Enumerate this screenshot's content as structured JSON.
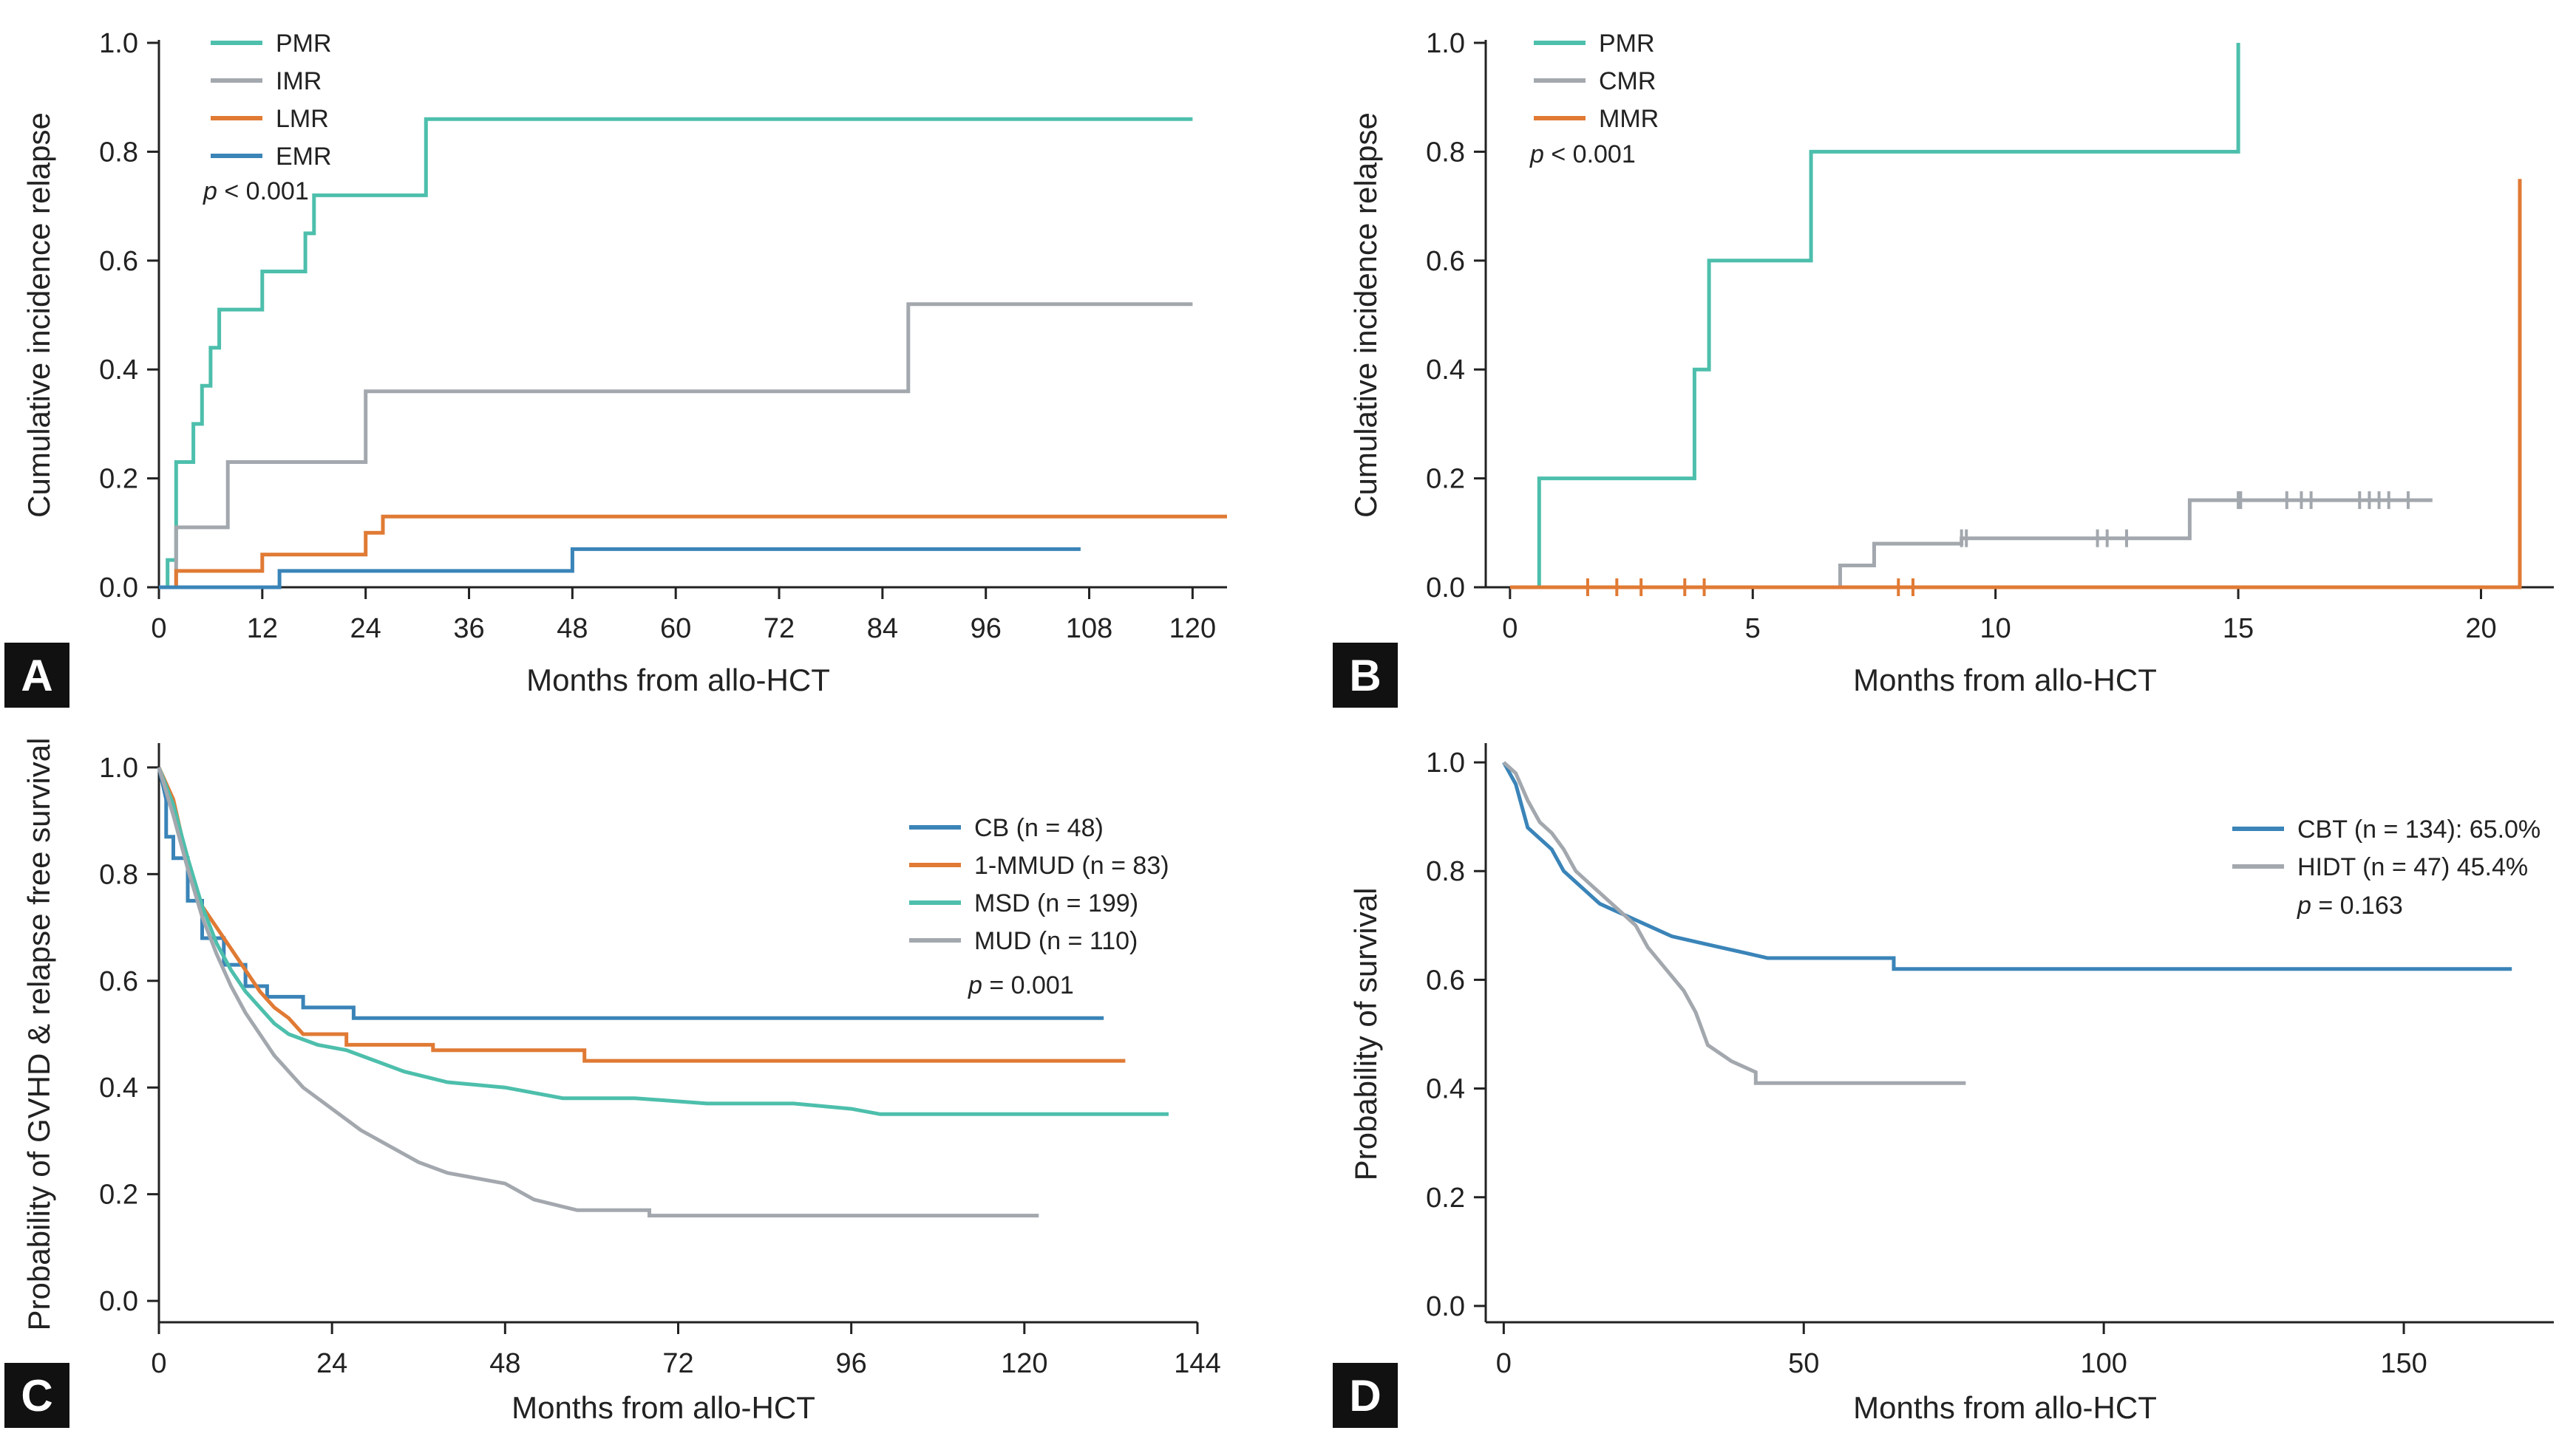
{
  "chart_data": [
    {
      "panel": "A",
      "type": "line",
      "step": true,
      "xlabel": "Months from allo-HCT",
      "ylabel": "Cumulative incidence relapse",
      "xlim": [
        0,
        124
      ],
      "ylim": [
        0,
        1.0
      ],
      "xticks": [
        0,
        12,
        24,
        36,
        48,
        60,
        72,
        84,
        96,
        108,
        120
      ],
      "yticks": [
        0.0,
        0.2,
        0.4,
        0.6,
        0.8,
        1.0
      ],
      "xtick_labels": [
        "0",
        "12",
        "24",
        "36",
        "48",
        "60",
        "72",
        "84",
        "96",
        "108",
        "120"
      ],
      "ytick_labels": [
        "0.0",
        "0.2",
        "0.4",
        "0.6",
        "0.8",
        "1.0"
      ],
      "p_prefix": "p",
      "p_text": " < 0.001",
      "series": [
        {
          "name": "PMR",
          "color": "#4dbfac",
          "points": [
            [
              1,
              0
            ],
            [
              1,
              0.05
            ],
            [
              2,
              0.05
            ],
            [
              2,
              0.23
            ],
            [
              4,
              0.23
            ],
            [
              4,
              0.3
            ],
            [
              5,
              0.3
            ],
            [
              5,
              0.37
            ],
            [
              6,
              0.37
            ],
            [
              6,
              0.44
            ],
            [
              7,
              0.44
            ],
            [
              7,
              0.51
            ],
            [
              12,
              0.51
            ],
            [
              12,
              0.58
            ],
            [
              17,
              0.58
            ],
            [
              17,
              0.65
            ],
            [
              18,
              0.65
            ],
            [
              18,
              0.72
            ],
            [
              31,
              0.72
            ],
            [
              31,
              0.86
            ],
            [
              120,
              0.86
            ]
          ]
        },
        {
          "name": "IMR",
          "color": "#a3a8ae",
          "points": [
            [
              2,
              0
            ],
            [
              2,
              0.11
            ],
            [
              8,
              0.11
            ],
            [
              8,
              0.23
            ],
            [
              24,
              0.23
            ],
            [
              24,
              0.36
            ],
            [
              87,
              0.36
            ],
            [
              87,
              0.52
            ],
            [
              120,
              0.52
            ]
          ]
        },
        {
          "name": "LMR",
          "color": "#e07a34",
          "points": [
            [
              2,
              0
            ],
            [
              2,
              0.03
            ],
            [
              12,
              0.03
            ],
            [
              12,
              0.06
            ],
            [
              24,
              0.06
            ],
            [
              24,
              0.1
            ],
            [
              26,
              0.1
            ],
            [
              26,
              0.13
            ],
            [
              124,
              0.13
            ]
          ]
        },
        {
          "name": "EMR",
          "color": "#3a84b8",
          "points": [
            [
              0,
              0
            ],
            [
              14,
              0
            ],
            [
              14,
              0.03
            ],
            [
              48,
              0.03
            ],
            [
              48,
              0.07
            ],
            [
              107,
              0.07
            ]
          ]
        }
      ]
    },
    {
      "panel": "B",
      "type": "line",
      "step": true,
      "xlabel": "Months from allo-HCT",
      "ylabel": "Cumulative incidence relapse",
      "xlim": [
        -0.5,
        21.5
      ],
      "ylim": [
        0,
        1.0
      ],
      "xticks": [
        0,
        5,
        10,
        15,
        20
      ],
      "yticks": [
        0.0,
        0.2,
        0.4,
        0.6,
        0.8,
        1.0
      ],
      "xtick_labels": [
        "0",
        "5",
        "10",
        "15",
        "20"
      ],
      "ytick_labels": [
        "0.0",
        "0.2",
        "0.4",
        "0.6",
        "0.8",
        "1.0"
      ],
      "p_prefix": "p",
      "p_text": " < 0.001",
      "series": [
        {
          "name": "PMR",
          "color": "#4dbfac",
          "points": [
            [
              0.6,
              0
            ],
            [
              0.6,
              0.2
            ],
            [
              3.8,
              0.2
            ],
            [
              3.8,
              0.4
            ],
            [
              4.1,
              0.4
            ],
            [
              4.1,
              0.6
            ],
            [
              6.2,
              0.6
            ],
            [
              6.2,
              0.8
            ],
            [
              15,
              0.8
            ],
            [
              15,
              1.0
            ]
          ],
          "censors": []
        },
        {
          "name": "CMR",
          "color": "#a3a8ae",
          "points": [
            [
              6.8,
              0
            ],
            [
              6.8,
              0.04
            ],
            [
              7.5,
              0.04
            ],
            [
              7.5,
              0.08
            ],
            [
              9.3,
              0.08
            ],
            [
              9.3,
              0.09
            ],
            [
              14,
              0.09
            ],
            [
              14,
              0.16
            ],
            [
              19,
              0.16
            ]
          ],
          "censors": [
            [
              9.3,
              0.09
            ],
            [
              9.4,
              0.09
            ],
            [
              12.1,
              0.09
            ],
            [
              12.3,
              0.09
            ],
            [
              12.7,
              0.09
            ],
            [
              15,
              0.16
            ],
            [
              15.05,
              0.16
            ],
            [
              16,
              0.16
            ],
            [
              16.3,
              0.16
            ],
            [
              16.5,
              0.16
            ],
            [
              17.5,
              0.16
            ],
            [
              17.7,
              0.16
            ],
            [
              17.9,
              0.16
            ],
            [
              18.1,
              0.16
            ],
            [
              18.5,
              0.16
            ]
          ]
        },
        {
          "name": "MMR",
          "color": "#e07a34",
          "points": [
            [
              0,
              0
            ],
            [
              20.8,
              0
            ],
            [
              20.8,
              0.75
            ]
          ],
          "censors": [
            [
              1.6,
              0
            ],
            [
              2.2,
              0
            ],
            [
              2.7,
              0
            ],
            [
              3.6,
              0
            ],
            [
              4.0,
              0
            ],
            [
              8.0,
              0
            ],
            [
              8.3,
              0
            ]
          ]
        }
      ]
    },
    {
      "panel": "C",
      "type": "line",
      "step": true,
      "xlabel": "Months from allo-HCT",
      "ylabel": "Probability of GVHD & relapse free survival",
      "xlim": [
        0,
        144
      ],
      "ylim": [
        -0.04,
        1.04
      ],
      "xticks": [
        0,
        24,
        48,
        72,
        96,
        120,
        144
      ],
      "yticks": [
        0.0,
        0.2,
        0.4,
        0.6,
        0.8,
        1.0
      ],
      "xtick_labels": [
        "0",
        "24",
        "48",
        "72",
        "96",
        "120",
        "144"
      ],
      "ytick_labels": [
        "0.0",
        "0.2",
        "0.4",
        "0.6",
        "0.8",
        "1.0"
      ],
      "p_prefix": "p",
      "p_text": " = 0.001",
      "series": [
        {
          "name": "CB (n = 48)",
          "color": "#3a84b8",
          "points": [
            [
              0,
              1.0
            ],
            [
              1,
              0.94
            ],
            [
              1,
              0.87
            ],
            [
              2,
              0.87
            ],
            [
              2,
              0.83
            ],
            [
              4,
              0.83
            ],
            [
              4,
              0.75
            ],
            [
              6,
              0.75
            ],
            [
              6,
              0.68
            ],
            [
              9,
              0.68
            ],
            [
              9,
              0.63
            ],
            [
              12,
              0.63
            ],
            [
              12,
              0.59
            ],
            [
              15,
              0.59
            ],
            [
              15,
              0.57
            ],
            [
              20,
              0.57
            ],
            [
              20,
              0.55
            ],
            [
              27,
              0.55
            ],
            [
              27,
              0.53
            ],
            [
              131,
              0.53
            ]
          ]
        },
        {
          "name": "1-MMUD (n = 83)",
          "color": "#e07a34",
          "points": [
            [
              0,
              1.0
            ],
            [
              2,
              0.94
            ],
            [
              3,
              0.88
            ],
            [
              4,
              0.82
            ],
            [
              6,
              0.74
            ],
            [
              8,
              0.7
            ],
            [
              10,
              0.66
            ],
            [
              12,
              0.62
            ],
            [
              14,
              0.58
            ],
            [
              16,
              0.55
            ],
            [
              18,
              0.53
            ],
            [
              20,
              0.5
            ],
            [
              26,
              0.5
            ],
            [
              26,
              0.48
            ],
            [
              38,
              0.48
            ],
            [
              38,
              0.47
            ],
            [
              59,
              0.47
            ],
            [
              59,
              0.45
            ],
            [
              134,
              0.45
            ]
          ]
        },
        {
          "name": "MSD (n = 199)",
          "color": "#4dbfac",
          "points": [
            [
              0,
              1.0
            ],
            [
              2,
              0.93
            ],
            [
              4,
              0.83
            ],
            [
              6,
              0.74
            ],
            [
              8,
              0.67
            ],
            [
              10,
              0.62
            ],
            [
              12,
              0.58
            ],
            [
              14,
              0.55
            ],
            [
              16,
              0.52
            ],
            [
              18,
              0.5
            ],
            [
              22,
              0.48
            ],
            [
              26,
              0.47
            ],
            [
              30,
              0.45
            ],
            [
              34,
              0.43
            ],
            [
              40,
              0.41
            ],
            [
              48,
              0.4
            ],
            [
              56,
              0.38
            ],
            [
              66,
              0.38
            ],
            [
              76,
              0.37
            ],
            [
              88,
              0.37
            ],
            [
              96,
              0.36
            ],
            [
              100,
              0.35
            ],
            [
              110,
              0.35
            ],
            [
              120,
              0.35
            ],
            [
              140,
              0.35
            ]
          ]
        },
        {
          "name": "MUD (n = 110)",
          "color": "#a3a8ae",
          "points": [
            [
              0,
              1.0
            ],
            [
              2,
              0.91
            ],
            [
              4,
              0.81
            ],
            [
              6,
              0.72
            ],
            [
              8,
              0.65
            ],
            [
              10,
              0.59
            ],
            [
              12,
              0.54
            ],
            [
              14,
              0.5
            ],
            [
              16,
              0.46
            ],
            [
              18,
              0.43
            ],
            [
              20,
              0.4
            ],
            [
              24,
              0.36
            ],
            [
              28,
              0.32
            ],
            [
              32,
              0.29
            ],
            [
              36,
              0.26
            ],
            [
              40,
              0.24
            ],
            [
              48,
              0.22
            ],
            [
              52,
              0.19
            ],
            [
              58,
              0.17
            ],
            [
              68,
              0.17
            ],
            [
              68,
              0.16
            ],
            [
              122,
              0.16
            ]
          ]
        }
      ]
    },
    {
      "panel": "D",
      "type": "line",
      "step": true,
      "xlabel": "Months from allo-HCT",
      "ylabel": "Probability of survival",
      "xlim": [
        -3,
        175
      ],
      "ylim": [
        -0.03,
        1.03
      ],
      "xticks": [
        0,
        50,
        100,
        150
      ],
      "yticks": [
        0.0,
        0.2,
        0.4,
        0.6,
        0.8,
        1.0
      ],
      "xtick_labels": [
        "0",
        "50",
        "100",
        "150"
      ],
      "ytick_labels": [
        "0.0",
        "0.2",
        "0.4",
        "0.6",
        "0.8",
        "1.0"
      ],
      "p_prefix": "p",
      "p_text": " = 0.163",
      "series": [
        {
          "name": "CBT (n = 134): 65.0%",
          "color": "#3a84b8",
          "points": [
            [
              0,
              1.0
            ],
            [
              1,
              0.98
            ],
            [
              2,
              0.96
            ],
            [
              3,
              0.92
            ],
            [
              4,
              0.88
            ],
            [
              6,
              0.86
            ],
            [
              8,
              0.84
            ],
            [
              10,
              0.8
            ],
            [
              12,
              0.78
            ],
            [
              14,
              0.76
            ],
            [
              16,
              0.74
            ],
            [
              18,
              0.73
            ],
            [
              20,
              0.72
            ],
            [
              24,
              0.7
            ],
            [
              28,
              0.68
            ],
            [
              32,
              0.67
            ],
            [
              36,
              0.66
            ],
            [
              40,
              0.65
            ],
            [
              44,
              0.64
            ],
            [
              50,
              0.64
            ],
            [
              58,
              0.64
            ],
            [
              65,
              0.64
            ],
            [
              65,
              0.62
            ],
            [
              168,
              0.62
            ]
          ]
        },
        {
          "name": "HIDT (n = 47) 45.4%",
          "color": "#a3a8ae",
          "points": [
            [
              0,
              1.0
            ],
            [
              2,
              0.98
            ],
            [
              4,
              0.93
            ],
            [
              6,
              0.89
            ],
            [
              8,
              0.87
            ],
            [
              10,
              0.84
            ],
            [
              12,
              0.8
            ],
            [
              15,
              0.77
            ],
            [
              18,
              0.74
            ],
            [
              22,
              0.7
            ],
            [
              24,
              0.66
            ],
            [
              27,
              0.62
            ],
            [
              30,
              0.58
            ],
            [
              32,
              0.54
            ],
            [
              34,
              0.48
            ],
            [
              38,
              0.45
            ],
            [
              42,
              0.43
            ],
            [
              42,
              0.41
            ],
            [
              77,
              0.41
            ]
          ]
        }
      ]
    }
  ]
}
